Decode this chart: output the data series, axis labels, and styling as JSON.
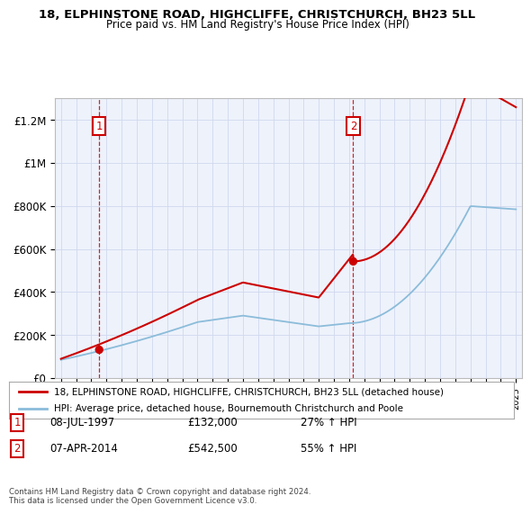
{
  "title": "18, ELPHINSTONE ROAD, HIGHCLIFFE, CHRISTCHURCH, BH23 5LL",
  "subtitle": "Price paid vs. HM Land Registry's House Price Index (HPI)",
  "ylim": [
    0,
    1300000
  ],
  "yticks": [
    0,
    200000,
    400000,
    600000,
    800000,
    1000000,
    1200000
  ],
  "ytick_labels": [
    "£0",
    "£200K",
    "£400K",
    "£600K",
    "£800K",
    "£1M",
    "£1.2M"
  ],
  "x_start_year": 1995,
  "x_end_year": 2025,
  "sale1_year": 1997.52,
  "sale1_price": 132000,
  "sale2_year": 2014.27,
  "sale2_price": 542500,
  "sale1_label": "1",
  "sale2_label": "2",
  "legend_line1": "18, ELPHINSTONE ROAD, HIGHCLIFFE, CHRISTCHURCH, BH23 5LL (detached house)",
  "legend_line2": "HPI: Average price, detached house, Bournemouth Christchurch and Poole",
  "table_row1_num": "1",
  "table_row1_date": "08-JUL-1997",
  "table_row1_price": "£132,000",
  "table_row1_hpi": "27% ↑ HPI",
  "table_row2_num": "2",
  "table_row2_date": "07-APR-2014",
  "table_row2_price": "£542,500",
  "table_row2_hpi": "55% ↑ HPI",
  "footer": "Contains HM Land Registry data © Crown copyright and database right 2024.\nThis data is licensed under the Open Government Licence v3.0.",
  "line_color_red": "#cc0000",
  "line_color_blue": "#8bbcda",
  "bg_color": "#eef2fb",
  "grid_color": "#d0d8ee",
  "dashed_color": "#cc0000"
}
